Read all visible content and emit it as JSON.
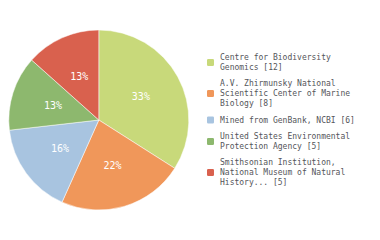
{
  "chart_data": {
    "type": "pie",
    "categories": [
      "Centre for Biodiversity\nGenomics [12]",
      "A.V. Zhirmunsky National\nScientific Center of Marine\nBiology [8]",
      "Mined from GenBank, NCBI [6]",
      "United States Environmental\nProtection Agency [5]",
      "Smithsonian Institution,\nNational Museum of Natural\nHistory... [5]"
    ],
    "values": [
      33,
      22,
      16,
      13,
      13
    ],
    "value_labels": [
      "33%",
      "22%",
      "16%",
      "13%",
      "13%"
    ],
    "colors": [
      "#c8d97a",
      "#f0975a",
      "#a8c4e0",
      "#8db86e",
      "#d9614e"
    ],
    "data_labels": true,
    "legend": "right"
  }
}
